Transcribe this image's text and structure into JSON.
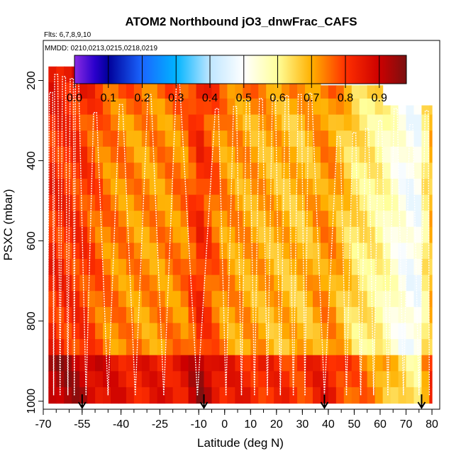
{
  "chart_data": {
    "type": "heatmap",
    "title": "ATOM2 Northbound jO3_dnwFrac_CAFS",
    "flights_note": "Flts: 6,7,8,9,10",
    "dates_note": "MMDD: 0210,0213,0215,0218,0219",
    "xlabel": "Latitude (deg N)",
    "ylabel": "PSXC (mbar)",
    "xlim": [
      -70,
      83
    ],
    "ylim": [
      1020,
      100
    ],
    "x_ticks": [
      {
        "value": -70,
        "label": "-70"
      },
      {
        "value": -55,
        "label": "-55"
      },
      {
        "value": -40,
        "label": "-40"
      },
      {
        "value": -25,
        "label": "-25"
      },
      {
        "value": -10,
        "label": "-10"
      },
      {
        "value": 0,
        "label": "0"
      },
      {
        "value": 10,
        "label": "10"
      },
      {
        "value": 20,
        "label": "20"
      },
      {
        "value": 30,
        "label": "30"
      },
      {
        "value": 40,
        "label": "40"
      },
      {
        "value": 50,
        "label": "50"
      },
      {
        "value": 60,
        "label": "60"
      },
      {
        "value": 70,
        "label": "70"
      },
      {
        "value": 80,
        "label": "80"
      }
    ],
    "y_ticks": [
      {
        "value": 200,
        "label": "200"
      },
      {
        "value": 400,
        "label": "400"
      },
      {
        "value": 600,
        "label": "600"
      },
      {
        "value": 800,
        "label": "800"
      },
      {
        "value": 1000,
        "label": "1000"
      }
    ],
    "colorbar": {
      "range": [
        0,
        0.98
      ],
      "ticks": [
        {
          "value": 0.0,
          "label": "0.0"
        },
        {
          "value": 0.1,
          "label": "0.1"
        },
        {
          "value": 0.2,
          "label": "0.2"
        },
        {
          "value": 0.3,
          "label": "0.3"
        },
        {
          "value": 0.4,
          "label": "0.4"
        },
        {
          "value": 0.5,
          "label": "0.5"
        },
        {
          "value": 0.6,
          "label": "0.6"
        },
        {
          "value": 0.7,
          "label": "0.7"
        },
        {
          "value": 0.8,
          "label": "0.8"
        },
        {
          "value": 0.9,
          "label": "0.9"
        }
      ],
      "stops": [
        {
          "value": 0.0,
          "color": "#8a2be2"
        },
        {
          "value": 0.06,
          "color": "#2a00cc"
        },
        {
          "value": 0.1,
          "color": "#00009a"
        },
        {
          "value": 0.2,
          "color": "#1a66ff"
        },
        {
          "value": 0.3,
          "color": "#00b4ff"
        },
        {
          "value": 0.4,
          "color": "#bfe6ff"
        },
        {
          "value": 0.5,
          "color": "#ffffff"
        },
        {
          "value": 0.6,
          "color": "#ffff99"
        },
        {
          "value": 0.7,
          "color": "#ffb000"
        },
        {
          "value": 0.8,
          "color": "#ff3000"
        },
        {
          "value": 0.9,
          "color": "#cc0000"
        },
        {
          "value": 0.98,
          "color": "#7a1010"
        }
      ]
    },
    "segments": [
      {
        "lat_range": [
          -68,
          37
        ],
        "p_top": 165,
        "p_bottom": 1005
      },
      {
        "lat_range": [
          37,
          61
        ],
        "p_top": 212,
        "p_bottom": 1005
      },
      {
        "lat_range": [
          61,
          80
        ],
        "p_top": 262,
        "p_bottom": 1005
      }
    ],
    "lat_bin_deg": 3,
    "pressure_levels_mbar": [
      165,
      205,
      245,
      285,
      325,
      365,
      405,
      445,
      485,
      525,
      565,
      605,
      645,
      685,
      725,
      765,
      805,
      845,
      885,
      925,
      965,
      1005
    ],
    "value_profile": {
      "by_latitude": [
        {
          "lat": -68,
          "value": 0.82
        },
        {
          "lat": -55,
          "value": 0.8
        },
        {
          "lat": -45,
          "value": 0.74
        },
        {
          "lat": -30,
          "value": 0.72
        },
        {
          "lat": -15,
          "value": 0.74
        },
        {
          "lat": -10,
          "value": 0.82
        },
        {
          "lat": 0,
          "value": 0.72
        },
        {
          "lat": 15,
          "value": 0.7
        },
        {
          "lat": 30,
          "value": 0.68
        },
        {
          "lat": 40,
          "value": 0.73
        },
        {
          "lat": 50,
          "value": 0.64
        },
        {
          "lat": 60,
          "value": 0.6
        },
        {
          "lat": 68,
          "value": 0.52
        },
        {
          "lat": 74,
          "value": 0.48
        },
        {
          "lat": 80,
          "value": 0.7
        }
      ],
      "top_increment": 0.06,
      "surface_increment": 0.12
    },
    "profile_turns": [
      {
        "lat": -67,
        "p_min": 230
      },
      {
        "lat": -65,
        "p_min": 185
      },
      {
        "lat": -62,
        "p_min": 190
      },
      {
        "lat": -59,
        "p_min": 195
      },
      {
        "lat": -57,
        "p_min": 188
      },
      {
        "lat": -50,
        "p_min": 280
      },
      {
        "lat": -40,
        "p_min": 260
      },
      {
        "lat": -29,
        "p_min": 235
      },
      {
        "lat": -18,
        "p_min": 205
      },
      {
        "lat": -3,
        "p_min": 270
      },
      {
        "lat": 4,
        "p_min": 265
      },
      {
        "lat": 9,
        "p_min": 250
      },
      {
        "lat": 14,
        "p_min": 245
      },
      {
        "lat": 19,
        "p_min": 240
      },
      {
        "lat": 24,
        "p_min": 238
      },
      {
        "lat": 29,
        "p_min": 235
      },
      {
        "lat": 33,
        "p_min": 232
      },
      {
        "lat": 44,
        "p_min": 340
      },
      {
        "lat": 50,
        "p_min": 330
      },
      {
        "lat": 55,
        "p_min": 320
      },
      {
        "lat": 60,
        "p_min": 300
      },
      {
        "lat": 66,
        "p_min": 270
      },
      {
        "lat": 72,
        "p_min": 310
      },
      {
        "lat": 78,
        "p_min": 275
      }
    ],
    "profile_bottom_mbar": 985,
    "flight_breaks": [
      {
        "lat": -55
      },
      {
        "lat": -8
      },
      {
        "lat": 38.5
      },
      {
        "lat": 76
      }
    ]
  }
}
